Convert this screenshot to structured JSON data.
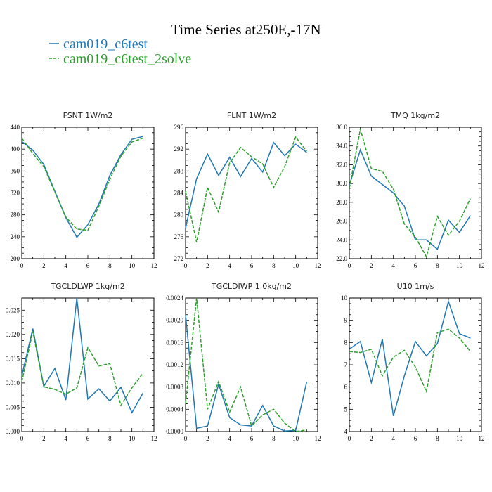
{
  "figure": {
    "title": "Time Series at250E,-17N",
    "legend": [
      {
        "name": "cam019_c6test",
        "color": "#1f77b4",
        "dash": "solid"
      },
      {
        "name": "cam019_c6test_2solve",
        "color": "#2ca02c",
        "dash": "dashed"
      }
    ]
  },
  "chart_data": [
    {
      "type": "line",
      "title": "FSNT  1W/m2",
      "x": [
        0,
        1,
        2,
        3,
        4,
        5,
        6,
        7,
        8,
        9,
        10,
        11
      ],
      "xlim": [
        0,
        12
      ],
      "xticks": [
        0,
        2,
        4,
        6,
        8,
        10,
        12
      ],
      "xtick_labels": [
        "0",
        "2",
        "4",
        "6",
        "8",
        "10",
        "12"
      ],
      "ylim": [
        200,
        440
      ],
      "yticks": [
        200,
        240,
        280,
        320,
        360,
        400,
        440
      ],
      "ytick_labels": [
        "200",
        "240",
        "280",
        "320",
        "360",
        "400",
        "440"
      ],
      "grid": false,
      "series": [
        {
          "name": "cam019_c6test",
          "values": [
            414,
            398,
            372,
            323,
            275,
            239,
            262,
            300,
            352,
            390,
            418,
            423
          ]
        },
        {
          "name": "cam019_c6test_2solve",
          "values": [
            420,
            392,
            368,
            322,
            276,
            254,
            252,
            296,
            345,
            387,
            413,
            420
          ]
        }
      ]
    },
    {
      "type": "line",
      "title": "FLNT  1W/m2",
      "x": [
        0,
        1,
        2,
        3,
        4,
        5,
        6,
        7,
        8,
        9,
        10,
        11
      ],
      "xlim": [
        0,
        12
      ],
      "xticks": [
        0,
        2,
        4,
        6,
        8,
        10,
        12
      ],
      "xtick_labels": [
        "0",
        "2",
        "4",
        "6",
        "8",
        "10",
        "12"
      ],
      "ylim": [
        272,
        296
      ],
      "yticks": [
        272,
        276,
        280,
        284,
        288,
        292,
        296
      ],
      "ytick_labels": [
        "272",
        "276",
        "280",
        "284",
        "288",
        "292",
        "296"
      ],
      "grid": false,
      "series": [
        {
          "name": "cam019_c6test",
          "values": [
            277.6,
            286.6,
            291.1,
            287.2,
            290.5,
            287.0,
            290.3,
            287.8,
            293.2,
            290.8,
            292.9,
            291.4
          ]
        },
        {
          "name": "cam019_c6test_2solve",
          "values": [
            284.3,
            275.0,
            285.0,
            280.5,
            289.5,
            292.3,
            290.6,
            289.3,
            285.0,
            288.8,
            294.2,
            291.6
          ]
        }
      ]
    },
    {
      "type": "line",
      "title": "TMQ  1kg/m2",
      "x": [
        0,
        1,
        2,
        3,
        4,
        5,
        6,
        7,
        8,
        9,
        10,
        11
      ],
      "xlim": [
        0,
        12
      ],
      "xticks": [
        0,
        2,
        4,
        6,
        8,
        10,
        12
      ],
      "xtick_labels": [
        "0",
        "2",
        "4",
        "6",
        "8",
        "10",
        "12"
      ],
      "ylim": [
        22.0,
        36.0
      ],
      "yticks": [
        22,
        24,
        26,
        28,
        30,
        32,
        34,
        36
      ],
      "ytick_labels": [
        "22.0",
        "24.0",
        "26.0",
        "28.0",
        "30.0",
        "32.0",
        "34.0",
        "36.0"
      ],
      "grid": false,
      "series": [
        {
          "name": "cam019_c6test",
          "values": [
            29.8,
            33.6,
            30.8,
            29.9,
            29.0,
            27.6,
            24.0,
            24.0,
            23.0,
            26.1,
            24.8,
            26.6
          ]
        },
        {
          "name": "cam019_c6test_2solve",
          "values": [
            29.5,
            35.8,
            31.6,
            31.3,
            29.4,
            25.7,
            24.3,
            22.2,
            26.5,
            24.5,
            26.0,
            28.4
          ]
        }
      ]
    },
    {
      "type": "line",
      "title": "TGCLDLWP  1kg/m2",
      "x": [
        0,
        1,
        2,
        3,
        4,
        5,
        6,
        7,
        8,
        9,
        10,
        11
      ],
      "xlim": [
        0,
        12
      ],
      "xticks": [
        0,
        2,
        4,
        6,
        8,
        10,
        12
      ],
      "xtick_labels": [
        "0",
        "2",
        "4",
        "6",
        "8",
        "10",
        "12"
      ],
      "ylim": [
        0.0,
        0.0275
      ],
      "yticks": [
        0.0,
        0.005,
        0.01,
        0.015,
        0.02,
        0.025
      ],
      "ytick_labels": [
        "0.000",
        "0.005",
        "0.010",
        "0.015",
        "0.020",
        "0.025"
      ],
      "grid": false,
      "series": [
        {
          "name": "cam019_c6test",
          "values": [
            0.0115,
            0.0212,
            0.0093,
            0.013,
            0.0065,
            0.0275,
            0.0067,
            0.0088,
            0.0063,
            0.0091,
            0.0039,
            0.0079
          ]
        },
        {
          "name": "cam019_c6test_2solve",
          "values": [
            0.0103,
            0.0206,
            0.0092,
            0.0087,
            0.0077,
            0.009,
            0.0173,
            0.0135,
            0.014,
            0.0054,
            0.009,
            0.012
          ]
        }
      ]
    },
    {
      "type": "line",
      "title": "TGCLDIWP  1.0kg/m2",
      "x": [
        0,
        1,
        2,
        3,
        4,
        5,
        6,
        7,
        8,
        9,
        10,
        11
      ],
      "xlim": [
        0,
        12
      ],
      "xticks": [
        0,
        2,
        4,
        6,
        8,
        10,
        12
      ],
      "xtick_labels": [
        "0",
        "2",
        "4",
        "6",
        "8",
        "10",
        "12"
      ],
      "ylim": [
        0.0,
        0.0024
      ],
      "yticks": [
        0.0,
        0.0004,
        0.0008,
        0.0012,
        0.0016,
        0.002,
        0.0024
      ],
      "ytick_labels": [
        "0.0000",
        "0.0004",
        "0.0008",
        "0.0012",
        "0.0016",
        "0.0020",
        "0.0024"
      ],
      "grid": false,
      "series": [
        {
          "name": "cam019_c6test",
          "values": [
            0.0021,
            6e-05,
            0.0001,
            0.00085,
            0.00025,
            0.00012,
            0.0001,
            0.00047,
            0.0001,
            1e-05,
            2e-05,
            0.00089
          ]
        },
        {
          "name": "cam019_c6test_2solve",
          "values": [
            0.0005,
            0.0024,
            0.0004,
            0.0009,
            0.00035,
            0.0008,
            0.0001,
            0.0003,
            0.0004,
            0.00015,
            0.0,
            3e-05
          ]
        }
      ]
    },
    {
      "type": "line",
      "title": "U10  1m/s",
      "x": [
        0,
        1,
        2,
        3,
        4,
        5,
        6,
        7,
        8,
        9,
        10,
        11
      ],
      "xlim": [
        0,
        12
      ],
      "xticks": [
        0,
        2,
        4,
        6,
        8,
        10,
        12
      ],
      "xtick_labels": [
        "0",
        "2",
        "4",
        "6",
        "8",
        "10",
        "12"
      ],
      "ylim": [
        4,
        10
      ],
      "yticks": [
        4,
        5,
        6,
        7,
        8,
        9,
        10
      ],
      "ytick_labels": [
        "4",
        "5",
        "6",
        "7",
        "8",
        "9",
        "10"
      ],
      "grid": false,
      "series": [
        {
          "name": "cam019_c6test",
          "values": [
            7.7,
            8.05,
            6.2,
            8.15,
            4.7,
            6.5,
            8.05,
            7.4,
            7.95,
            9.85,
            8.4,
            8.2
          ]
        },
        {
          "name": "cam019_c6test_2solve",
          "values": [
            7.6,
            7.55,
            7.7,
            6.5,
            7.35,
            7.65,
            6.9,
            5.8,
            8.45,
            8.6,
            8.2,
            7.6
          ]
        }
      ]
    }
  ]
}
